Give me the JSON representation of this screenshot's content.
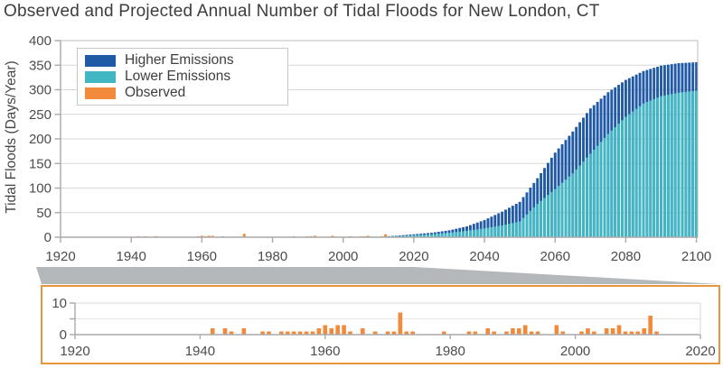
{
  "title": "Observed and Projected Annual Number of Tidal Floods for New London, CT",
  "colors": {
    "higher": "#2059a6",
    "lower": "#41b7c4",
    "observed": "#f18a3b",
    "grid": "#d7d7d7",
    "grid_light": "#e3e3e3",
    "axis": "#a9a9a9",
    "plot_border": "#bdbdbd",
    "tick_text": "#4c4c4c",
    "inset_border": "#e9953f",
    "wedge": "#b5b8bb"
  },
  "legend": {
    "items": [
      {
        "label": "Higher Emissions",
        "color_key": "higher"
      },
      {
        "label": "Lower Emissions",
        "color_key": "lower"
      },
      {
        "label": "Observed",
        "color_key": "observed"
      }
    ]
  },
  "chart_data": [
    {
      "id": "main",
      "type": "bar",
      "title": "Observed and Projected Annual Number of Tidal Floods for New London, CT",
      "xlabel": "",
      "ylabel": "Tidal Floods (Days/Year)",
      "xlim": [
        1920,
        2100
      ],
      "ylim": [
        0,
        400
      ],
      "xticks": [
        1920,
        1940,
        1960,
        1980,
        2000,
        2020,
        2040,
        2060,
        2080,
        2100
      ],
      "yticks": [
        0,
        50,
        100,
        150,
        200,
        250,
        300,
        350,
        400
      ],
      "grid": "horizontal",
      "legend_position": "upper-left",
      "series_note": "Projection anchors are [year, days/year]; annual bars are linearly interpolated between anchors. Observed values are a year-to-days map.",
      "series": [
        {
          "name": "Higher Emissions",
          "role": "projection",
          "anchors": [
            [
              2006,
              1
            ],
            [
              2010,
              1
            ],
            [
              2015,
              3
            ],
            [
              2020,
              6
            ],
            [
              2025,
              9
            ],
            [
              2030,
              14
            ],
            [
              2035,
              22
            ],
            [
              2040,
              35
            ],
            [
              2045,
              52
            ],
            [
              2050,
              72
            ],
            [
              2055,
              120
            ],
            [
              2060,
              172
            ],
            [
              2065,
              215
            ],
            [
              2070,
              262
            ],
            [
              2075,
              295
            ],
            [
              2080,
              320
            ],
            [
              2085,
              338
            ],
            [
              2090,
              349
            ],
            [
              2095,
              354
            ],
            [
              2100,
              356
            ]
          ]
        },
        {
          "name": "Lower Emissions",
          "role": "projection",
          "anchors": [
            [
              2006,
              1
            ],
            [
              2010,
              1
            ],
            [
              2015,
              2
            ],
            [
              2020,
              4
            ],
            [
              2025,
              6
            ],
            [
              2030,
              9
            ],
            [
              2035,
              13
            ],
            [
              2040,
              18
            ],
            [
              2045,
              24
            ],
            [
              2050,
              32
            ],
            [
              2055,
              68
            ],
            [
              2060,
              98
            ],
            [
              2065,
              130
            ],
            [
              2070,
              170
            ],
            [
              2075,
              210
            ],
            [
              2080,
              245
            ],
            [
              2085,
              272
            ],
            [
              2090,
              287
            ],
            [
              2095,
              294
            ],
            [
              2100,
              298
            ]
          ]
        },
        {
          "name": "Observed",
          "role": "observed",
          "values_by_year": {
            "1942": 2,
            "1944": 2,
            "1945": 1,
            "1947": 2,
            "1950": 1,
            "1951": 1,
            "1953": 1,
            "1954": 1,
            "1955": 1,
            "1956": 1,
            "1957": 1,
            "1958": 1,
            "1959": 2,
            "1960": 3,
            "1961": 2,
            "1962": 3,
            "1963": 3,
            "1964": 1,
            "1966": 2,
            "1968": 1,
            "1970": 1,
            "1971": 1,
            "1972": 7,
            "1973": 1,
            "1974": 1,
            "1979": 1,
            "1983": 1,
            "1984": 1,
            "1986": 2,
            "1987": 1,
            "1989": 1,
            "1990": 2,
            "1991": 2,
            "1992": 3,
            "1993": 1,
            "1994": 1,
            "1997": 3,
            "1998": 1,
            "2001": 1,
            "2002": 2,
            "2003": 1,
            "2005": 2,
            "2006": 2,
            "2007": 3,
            "2008": 1,
            "2009": 1,
            "2010": 1,
            "2011": 2,
            "2012": 6,
            "2013": 1
          }
        }
      ]
    },
    {
      "id": "inset",
      "type": "bar",
      "title": "",
      "xlabel": "",
      "ylabel": "",
      "xlim": [
        1920,
        2020
      ],
      "ylim": [
        0,
        10
      ],
      "xticks": [
        1920,
        1940,
        1960,
        1980,
        2000,
        2020
      ],
      "yticks": [
        {
          "v": 0,
          "label": "0"
        },
        {
          "v": 5,
          "label": ""
        },
        {
          "v": 10,
          "label": "10"
        }
      ],
      "grid": "horizontal",
      "series": [
        {
          "name": "Observed",
          "role": "observed",
          "values_by_year": {
            "1942": 2,
            "1944": 2,
            "1945": 1,
            "1947": 2,
            "1950": 1,
            "1951": 1,
            "1953": 1,
            "1954": 1,
            "1955": 1,
            "1956": 1,
            "1957": 1,
            "1958": 1,
            "1959": 2,
            "1960": 3,
            "1961": 2,
            "1962": 3,
            "1963": 3,
            "1964": 1,
            "1966": 2,
            "1968": 1,
            "1970": 1,
            "1971": 1,
            "1972": 7,
            "1973": 1,
            "1974": 1,
            "1979": 1,
            "1983": 1,
            "1984": 1,
            "1986": 2,
            "1987": 1,
            "1989": 1,
            "1990": 2,
            "1991": 2,
            "1992": 3,
            "1993": 1,
            "1994": 1,
            "1997": 3,
            "1998": 1,
            "2001": 1,
            "2002": 2,
            "2003": 1,
            "2005": 2,
            "2006": 2,
            "2007": 3,
            "2008": 1,
            "2009": 1,
            "2010": 1,
            "2011": 2,
            "2012": 6,
            "2013": 1
          }
        }
      ]
    }
  ]
}
